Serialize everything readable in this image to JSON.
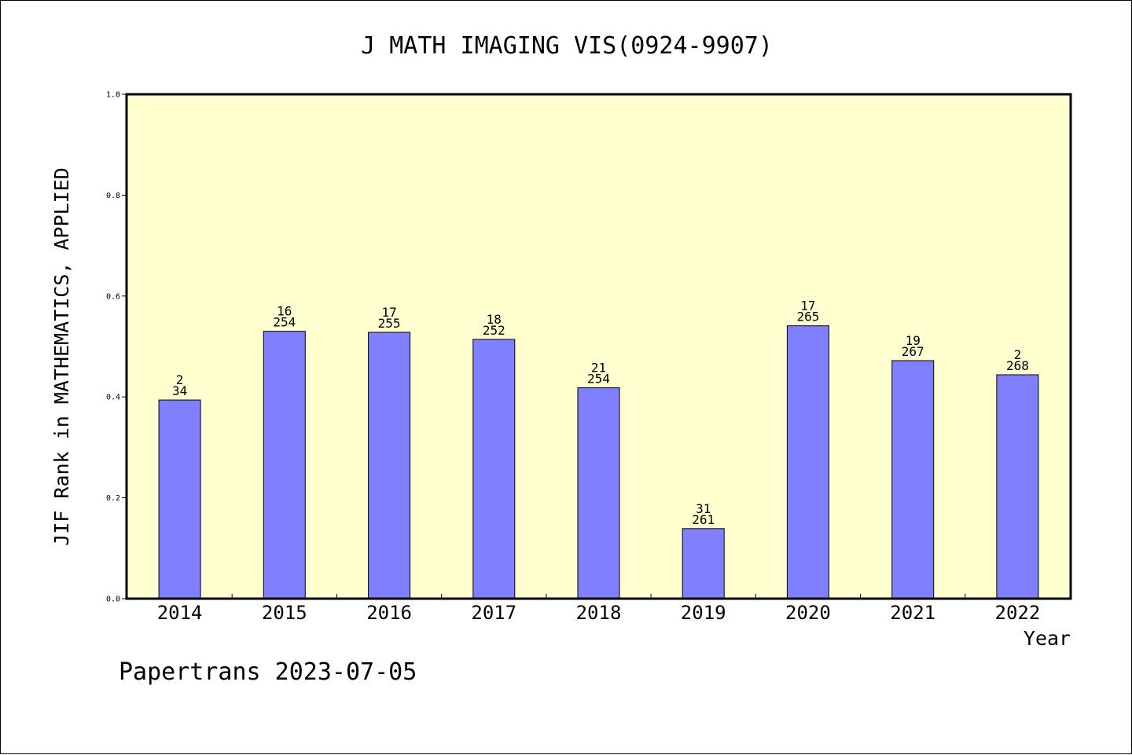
{
  "chart_data": {
    "type": "bar",
    "title": "J MATH IMAGING VIS(0924-9907)",
    "xlabel": "Year",
    "ylabel": "JIF Rank in MATHEMATICS, APPLIED",
    "categories": [
      "2014",
      "2015",
      "2016",
      "2017",
      "2018",
      "2019",
      "2020",
      "2021",
      "2022"
    ],
    "values": [
      0.394,
      0.53,
      0.528,
      0.514,
      0.418,
      0.139,
      0.541,
      0.472,
      0.444
    ],
    "label_top": [
      "2",
      "16",
      "17",
      "18",
      "21",
      "31",
      "17",
      "19",
      "2"
    ],
    "label_bottom": [
      "34",
      "254",
      "255",
      "252",
      "254",
      "261",
      "265",
      "267",
      "268"
    ],
    "ylim": [
      0,
      1.0
    ],
    "yticks": [
      "0.0",
      "0.2",
      "0.4",
      "0.6",
      "0.8",
      "1.0"
    ],
    "grid": false,
    "colors": {
      "plot_background": "#FFFFD0",
      "bar_fill": "#8080FF",
      "bar_stroke": "#000000"
    }
  },
  "footer": "Papertrans 2023-07-05"
}
